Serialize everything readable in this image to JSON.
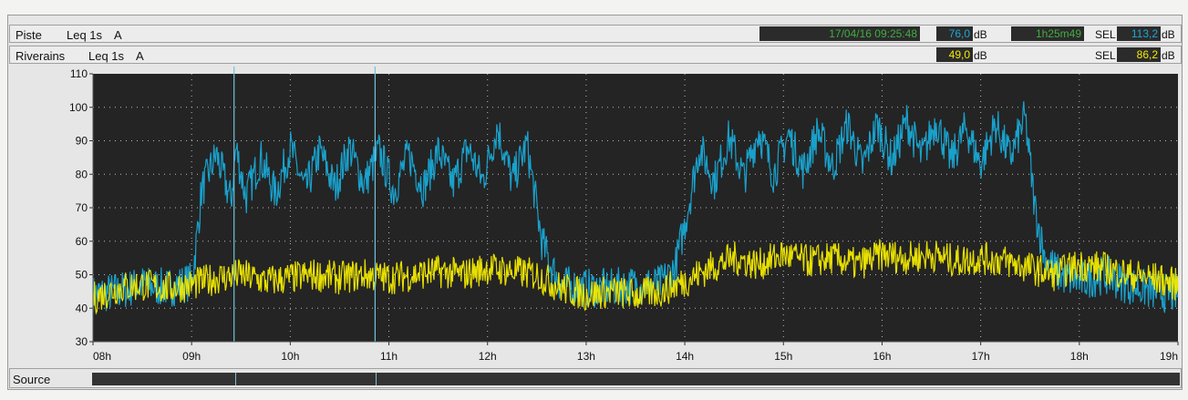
{
  "header": {
    "row1": {
      "label": "Piste",
      "metric": "Leq 1s",
      "weighting": "A",
      "timestamp": "17/04/16 09:25:48",
      "level": "76,0",
      "unit": "dB",
      "duration": "1h25m49",
      "sel_label": "SEL",
      "sel_value": "113,2",
      "sel_unit": "dB"
    },
    "row2": {
      "label": "Riverains",
      "metric": "Leq 1s",
      "weighting": "A",
      "level": "49,0",
      "unit": "dB",
      "sel_label": "SEL",
      "sel_value": "86,2",
      "sel_unit": "dB"
    }
  },
  "source": {
    "label": "Source"
  },
  "colors": {
    "plot_bg": "#242424",
    "piste": "#19a9d6",
    "riverains": "#f2ea00",
    "cursor": "#6fc4dc",
    "lcd_green": "#3fae3f",
    "lcd_cyan": "#19a9d6",
    "lcd_yellow": "#f2ea00"
  },
  "chart_data": {
    "type": "line",
    "title": "",
    "xlabel": "",
    "ylabel": "",
    "ylim": [
      30,
      110
    ],
    "xlim": [
      8,
      19
    ],
    "yticks": [
      30,
      40,
      50,
      60,
      70,
      80,
      90,
      100,
      110
    ],
    "xticks": [
      8,
      9,
      10,
      11,
      12,
      13,
      14,
      15,
      16,
      17,
      18,
      19
    ],
    "xtick_labels": [
      "08h",
      "09h",
      "10h",
      "11h",
      "12h",
      "13h",
      "14h",
      "15h",
      "16h",
      "17h",
      "18h",
      "19h"
    ],
    "grid": true,
    "cursors": [
      9.43,
      10.86
    ],
    "series": [
      {
        "name": "Piste",
        "x": [
          8.0,
          8.25,
          8.5,
          8.75,
          9.0,
          9.05,
          9.1,
          9.25,
          9.4,
          9.45,
          9.55,
          9.7,
          9.85,
          10.0,
          10.15,
          10.3,
          10.45,
          10.6,
          10.75,
          10.9,
          11.05,
          11.2,
          11.35,
          11.5,
          11.65,
          11.8,
          11.95,
          12.1,
          12.25,
          12.4,
          12.55,
          12.65,
          12.75,
          13.0,
          13.25,
          13.5,
          13.75,
          13.9,
          14.0,
          14.15,
          14.3,
          14.45,
          14.6,
          14.75,
          14.9,
          15.05,
          15.2,
          15.35,
          15.5,
          15.65,
          15.8,
          15.95,
          16.1,
          16.25,
          16.4,
          16.55,
          16.7,
          16.85,
          17.0,
          17.15,
          17.3,
          17.45,
          17.55,
          17.65,
          17.8,
          18.0,
          18.25,
          18.5,
          18.75,
          19.0
        ],
        "y": [
          44,
          45,
          47,
          46,
          48,
          60,
          75,
          86,
          72,
          88,
          73,
          85,
          74,
          88,
          75,
          87,
          76,
          88,
          77,
          87,
          75,
          86,
          76,
          87,
          77,
          88,
          78,
          94,
          78,
          89,
          60,
          52,
          47,
          46,
          46,
          47,
          47,
          52,
          65,
          88,
          78,
          91,
          79,
          93,
          80,
          92,
          81,
          93,
          82,
          95,
          82,
          95,
          84,
          96,
          85,
          96,
          84,
          94,
          83,
          95,
          85,
          97,
          70,
          55,
          50,
          48,
          50,
          47,
          45,
          44
        ]
      },
      {
        "name": "Riverains",
        "x": [
          8.0,
          8.25,
          8.5,
          8.75,
          9.0,
          9.25,
          9.5,
          9.75,
          10.0,
          10.25,
          10.5,
          10.75,
          11.0,
          11.25,
          11.5,
          11.75,
          12.0,
          12.25,
          12.5,
          12.75,
          13.0,
          13.25,
          13.5,
          13.75,
          14.0,
          14.25,
          14.5,
          14.75,
          15.0,
          15.25,
          15.5,
          15.75,
          16.0,
          16.25,
          16.5,
          16.75,
          17.0,
          17.25,
          17.5,
          17.75,
          18.0,
          18.25,
          18.5,
          18.75,
          19.0
        ],
        "y": [
          43,
          46,
          47,
          46,
          47,
          49,
          50,
          48,
          49,
          50,
          49,
          50,
          49,
          50,
          51,
          50,
          52,
          51,
          50,
          46,
          44,
          45,
          44,
          45,
          48,
          52,
          55,
          53,
          56,
          54,
          55,
          53,
          56,
          55,
          56,
          54,
          55,
          54,
          52,
          50,
          53,
          52,
          50,
          49,
          47
        ]
      }
    ]
  }
}
